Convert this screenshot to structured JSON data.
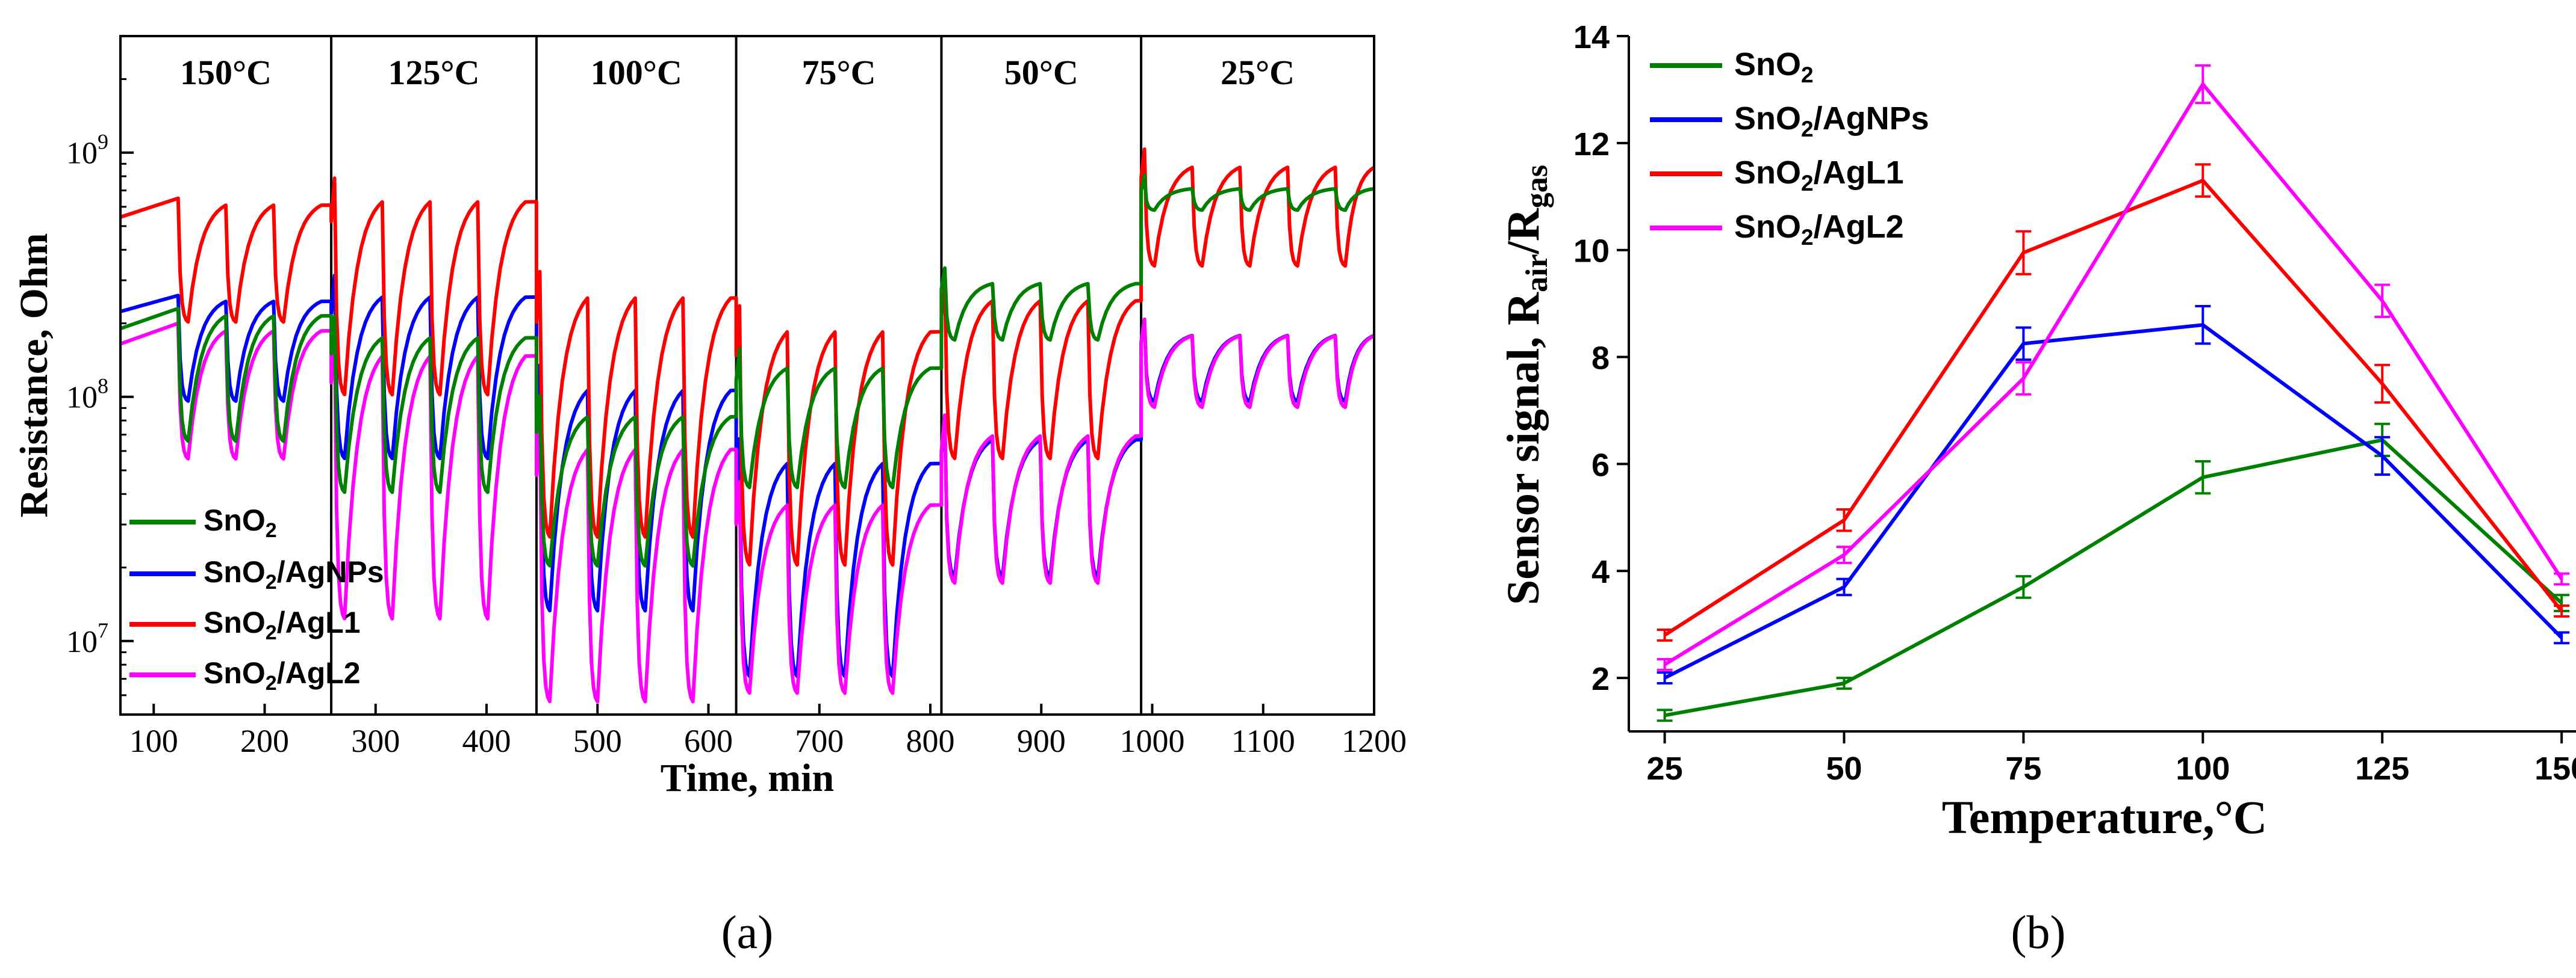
{
  "chart_data": [
    {
      "panel": "a",
      "type": "line",
      "caption": "(a)",
      "xlabel": "Time, min",
      "ylabel": "Resistance, Ohm",
      "xlim": [
        70,
        1200
      ],
      "ylim": [
        5000000,
        3000000000
      ],
      "yscale": "log",
      "x_ticks": [
        100,
        200,
        300,
        400,
        500,
        600,
        700,
        800,
        900,
        1000,
        1100,
        1200
      ],
      "y_tick_labels": [
        {
          "value": 10000000,
          "base": "10",
          "exp": "7"
        },
        {
          "value": 100000000,
          "base": "10",
          "exp": "8"
        },
        {
          "value": 1000000000,
          "base": "10",
          "exp": "9"
        }
      ],
      "temperature_sections": [
        {
          "label": "150°C",
          "start": 70,
          "end": 260
        },
        {
          "label": "125°C",
          "start": 260,
          "end": 445
        },
        {
          "label": "100°C",
          "start": 445,
          "end": 625
        },
        {
          "label": "75°C",
          "start": 625,
          "end": 810
        },
        {
          "label": "50°C",
          "start": 810,
          "end": 990
        },
        {
          "label": "25°C",
          "start": 990,
          "end": 1200
        }
      ],
      "series": [
        {
          "name": "SnO2",
          "sub": "2",
          "suffix": "",
          "color": "#008000",
          "levels": [
            {
              "air": 230000000,
              "gas": 65000000
            },
            {
              "air": 190000000,
              "gas": 40000000
            },
            {
              "air": 90000000,
              "gas": 20000000
            },
            {
              "air": 140000000,
              "gas": 42000000
            },
            {
              "air": 300000000,
              "gas": 170000000
            },
            {
              "air": 720000000,
              "gas": 580000000
            }
          ]
        },
        {
          "name": "SnO2/AgNPs",
          "sub": "2",
          "suffix": "/AgNPs",
          "color": "#0000ff",
          "levels": [
            {
              "air": 260000000,
              "gas": 95000000
            },
            {
              "air": 280000000,
              "gas": 55000000
            },
            {
              "air": 120000000,
              "gas": 13000000
            },
            {
              "air": 60000000,
              "gas": 7000000
            },
            {
              "air": 72000000,
              "gas": 18000000
            },
            {
              "air": 185000000,
              "gas": 95000000
            }
          ]
        },
        {
          "name": "SnO2/AgL1",
          "sub": "2",
          "suffix": "/AgL1",
          "color": "#ff0000",
          "levels": [
            {
              "air": 650000000,
              "gas": 200000000
            },
            {
              "air": 700000000,
              "gas": 100000000
            },
            {
              "air": 290000000,
              "gas": 26000000
            },
            {
              "air": 210000000,
              "gas": 20000000
            },
            {
              "air": 270000000,
              "gas": 55000000
            },
            {
              "air": 920000000,
              "gas": 340000000
            }
          ]
        },
        {
          "name": "SnO2/AgL2",
          "sub": "2",
          "suffix": "/AgL2",
          "color": "#ff00ff",
          "levels": [
            {
              "air": 200000000,
              "gas": 55000000
            },
            {
              "air": 170000000,
              "gas": 12000000
            },
            {
              "air": 70000000,
              "gas": 5500000
            },
            {
              "air": 40000000,
              "gas": 6000000
            },
            {
              "air": 75000000,
              "gas": 17000000
            },
            {
              "air": 185000000,
              "gas": 90000000
            }
          ]
        }
      ]
    },
    {
      "panel": "b",
      "type": "line",
      "caption": "(b)",
      "xlabel": "Temperature,°C",
      "ylabel_main": "Sensor signal, R",
      "ylabel_sub1": "air",
      "ylabel_sep": "/R",
      "ylabel_sub2": "gas",
      "xlim": [
        20,
        152
      ],
      "ylim": [
        1,
        14
      ],
      "x_ticks": [
        25,
        50,
        75,
        100,
        125,
        150
      ],
      "y_ticks": [
        2,
        4,
        6,
        8,
        10,
        12,
        14
      ],
      "x": [
        25,
        50,
        75,
        100,
        125,
        150
      ],
      "series": [
        {
          "name": "SnO2",
          "sub": "2",
          "suffix": "",
          "color": "#008000",
          "values": [
            1.3,
            1.9,
            3.7,
            5.75,
            6.45,
            3.4
          ],
          "errors": [
            0.1,
            0.1,
            0.2,
            0.3,
            0.3,
            0.15
          ]
        },
        {
          "name": "SnO2/AgNPs",
          "sub": "2",
          "suffix": "/AgNPs",
          "color": "#0000ff",
          "values": [
            2.0,
            3.7,
            8.25,
            8.6,
            6.15,
            2.75
          ],
          "errors": [
            0.1,
            0.15,
            0.3,
            0.35,
            0.35,
            0.1
          ]
        },
        {
          "name": "SnO2/AgL1",
          "sub": "2",
          "suffix": "/AgL1",
          "color": "#ff0000",
          "values": [
            2.8,
            4.95,
            9.95,
            11.3,
            7.5,
            3.25
          ],
          "errors": [
            0.1,
            0.2,
            0.4,
            0.3,
            0.35,
            0.1
          ]
        },
        {
          "name": "SnO2/AgL2",
          "sub": "2",
          "suffix": "/AgL2",
          "color": "#ff00ff",
          "values": [
            2.25,
            4.3,
            7.6,
            13.1,
            9.05,
            3.85
          ],
          "errors": [
            0.1,
            0.15,
            0.3,
            0.35,
            0.3,
            0.1
          ]
        }
      ]
    }
  ]
}
